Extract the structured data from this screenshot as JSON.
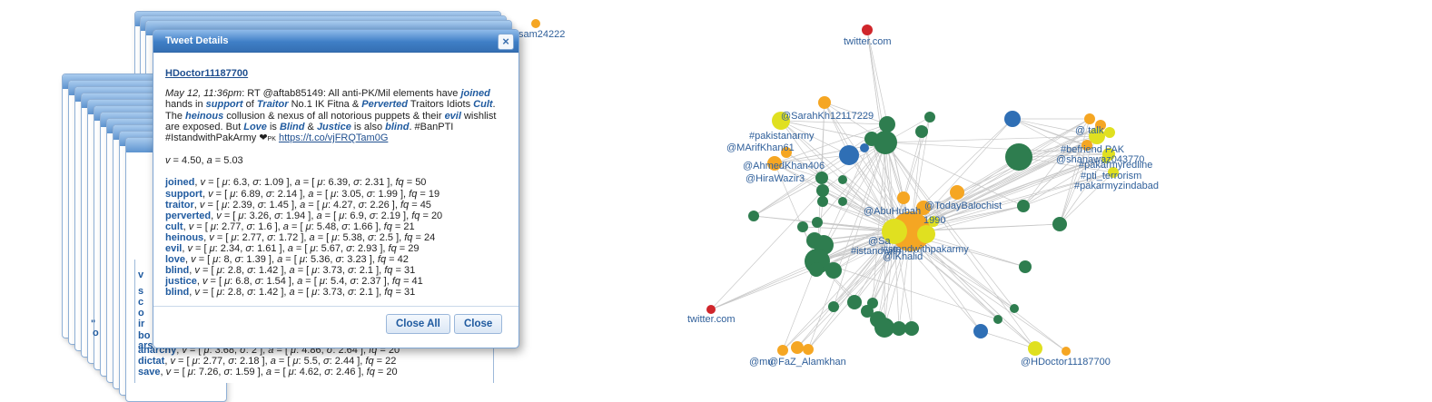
{
  "graph": {
    "labels": {
      "sam24222": "sam24222",
      "twitter_top": "twitter.com",
      "twitter_left": "twitter.com",
      "sarah": "@SarahKh12117229",
      "pakistanarmy": "#pakistanarmy",
      "marif": "@MArifKhan61",
      "ahmed": "@AhmedKhan406",
      "hira": "@HiraWazir3",
      "abuhubah": "@AbuHubah",
      "todaybaloch": "@TodayBalochist",
      "standwith": "#standwithpakarmy",
      "istand": "#istandwith",
      "sa": "@Sa",
      "hdoctor": "@HDoctor11187700",
      "mult1": "@mu",
      "mult2": "@FaZ_Alamkhan",
      "khalid": "@iKhalid",
      "talk": "@ talk",
      "befriend": "#befriend PAK",
      "shanawaz": "@shanawaz043770",
      "redline": "#pakarmyredline",
      "terrorism": "#pti_terrorism",
      "zindabad": "#pakarmyzindabad",
      "num": "1990"
    },
    "colors": {
      "green": "#2e7d4f",
      "orange": "#f5a623",
      "yellow": "#e0e020",
      "blue": "#2f6fb5",
      "red": "#d0262b",
      "edge": "#c8c8c8"
    }
  },
  "dialog": {
    "title": "Tweet Details",
    "username": "HDoctor11187700",
    "timestamp": "May 12, 11:36pm",
    "tweet_parts": [
      {
        "t": ": RT @aftab85149: All anti-PK/Mil elements have "
      },
      {
        "w": "joined"
      },
      {
        "t": " hands in "
      },
      {
        "w": "support"
      },
      {
        "t": " of "
      },
      {
        "w": "Traitor"
      },
      {
        "t": " No.1 IK Fitna & "
      },
      {
        "w": "Perverted"
      },
      {
        "t": " Traitors Idiots "
      },
      {
        "w": "Cult"
      },
      {
        "t": ". The "
      },
      {
        "w": "heinous"
      },
      {
        "t": " collusion & nexus of all notorious puppets & their "
      },
      {
        "w": "evil"
      },
      {
        "t": " wishlist are exposed. But "
      },
      {
        "w": "Love"
      },
      {
        "t": " is "
      },
      {
        "w": "Blind"
      },
      {
        "t": " & "
      },
      {
        "w": "Justice"
      },
      {
        "t": " is also "
      },
      {
        "w": "blind"
      },
      {
        "t": ". #BanPTI #IstandwithPakArmy ❤"
      },
      {
        "small": "PK"
      },
      {
        "t": " "
      },
      {
        "link": "https://t.co/vjFRQTam0G"
      }
    ],
    "v_value": "4.50",
    "a_value": "5.03",
    "stats": [
      {
        "word": "joined",
        "vm": "6.3",
        "vs": "1.09",
        "am": "6.39",
        "as": "2.31",
        "fq": "50"
      },
      {
        "word": "support",
        "vm": "6.89",
        "vs": "2.14",
        "am": "3.05",
        "as": "1.99",
        "fq": "19"
      },
      {
        "word": "traitor",
        "vm": "2.39",
        "vs": "1.45",
        "am": "4.27",
        "as": "2.26",
        "fq": "45"
      },
      {
        "word": "perverted",
        "vm": "3.26",
        "vs": "1.94",
        "am": "6.9",
        "as": "2.19",
        "fq": "20"
      },
      {
        "word": "cult",
        "vm": "2.77",
        "vs": "1.6",
        "am": "5.48",
        "as": "1.66",
        "fq": "21"
      },
      {
        "word": "heinous",
        "vm": "2.77",
        "vs": "1.72",
        "am": "5.38",
        "as": "2.5",
        "fq": "24"
      },
      {
        "word": "evil",
        "vm": "2.34",
        "vs": "1.61",
        "am": "5.67",
        "as": "2.93",
        "fq": "29"
      },
      {
        "word": "love",
        "vm": "8",
        "vs": "1.39",
        "am": "5.36",
        "as": "3.23",
        "fq": "42"
      },
      {
        "word": "blind",
        "vm": "2.8",
        "vs": "1.42",
        "am": "3.73",
        "as": "2.1",
        "fq": "31"
      },
      {
        "word": "justice",
        "vm": "6.8",
        "vs": "1.54",
        "am": "5.4",
        "as": "2.37",
        "fq": "41"
      },
      {
        "word": "blind",
        "vm": "2.8",
        "vs": "1.42",
        "am": "3.73",
        "as": "2.1",
        "fq": "31"
      }
    ],
    "close_all_label": "Close All",
    "close_label": "Close"
  },
  "background_panel": {
    "rows": [
      {
        "word": "anarchy",
        "vm": "3.68",
        "vs": "2",
        "am": "4.86",
        "as": "2.64",
        "fq": "20"
      },
      {
        "word": "dictat",
        "vm": "2.77",
        "vs": "2.18",
        "am": "5.5",
        "as": "2.44",
        "fq": "22"
      },
      {
        "word": "save",
        "vm": "7.26",
        "vs": "1.59",
        "am": "4.62",
        "as": "2.46",
        "fq": "20"
      }
    ],
    "fragments": [
      "v",
      "s",
      "c",
      "o",
      "ir",
      "bo",
      "ars",
      "\"",
      "o"
    ]
  }
}
